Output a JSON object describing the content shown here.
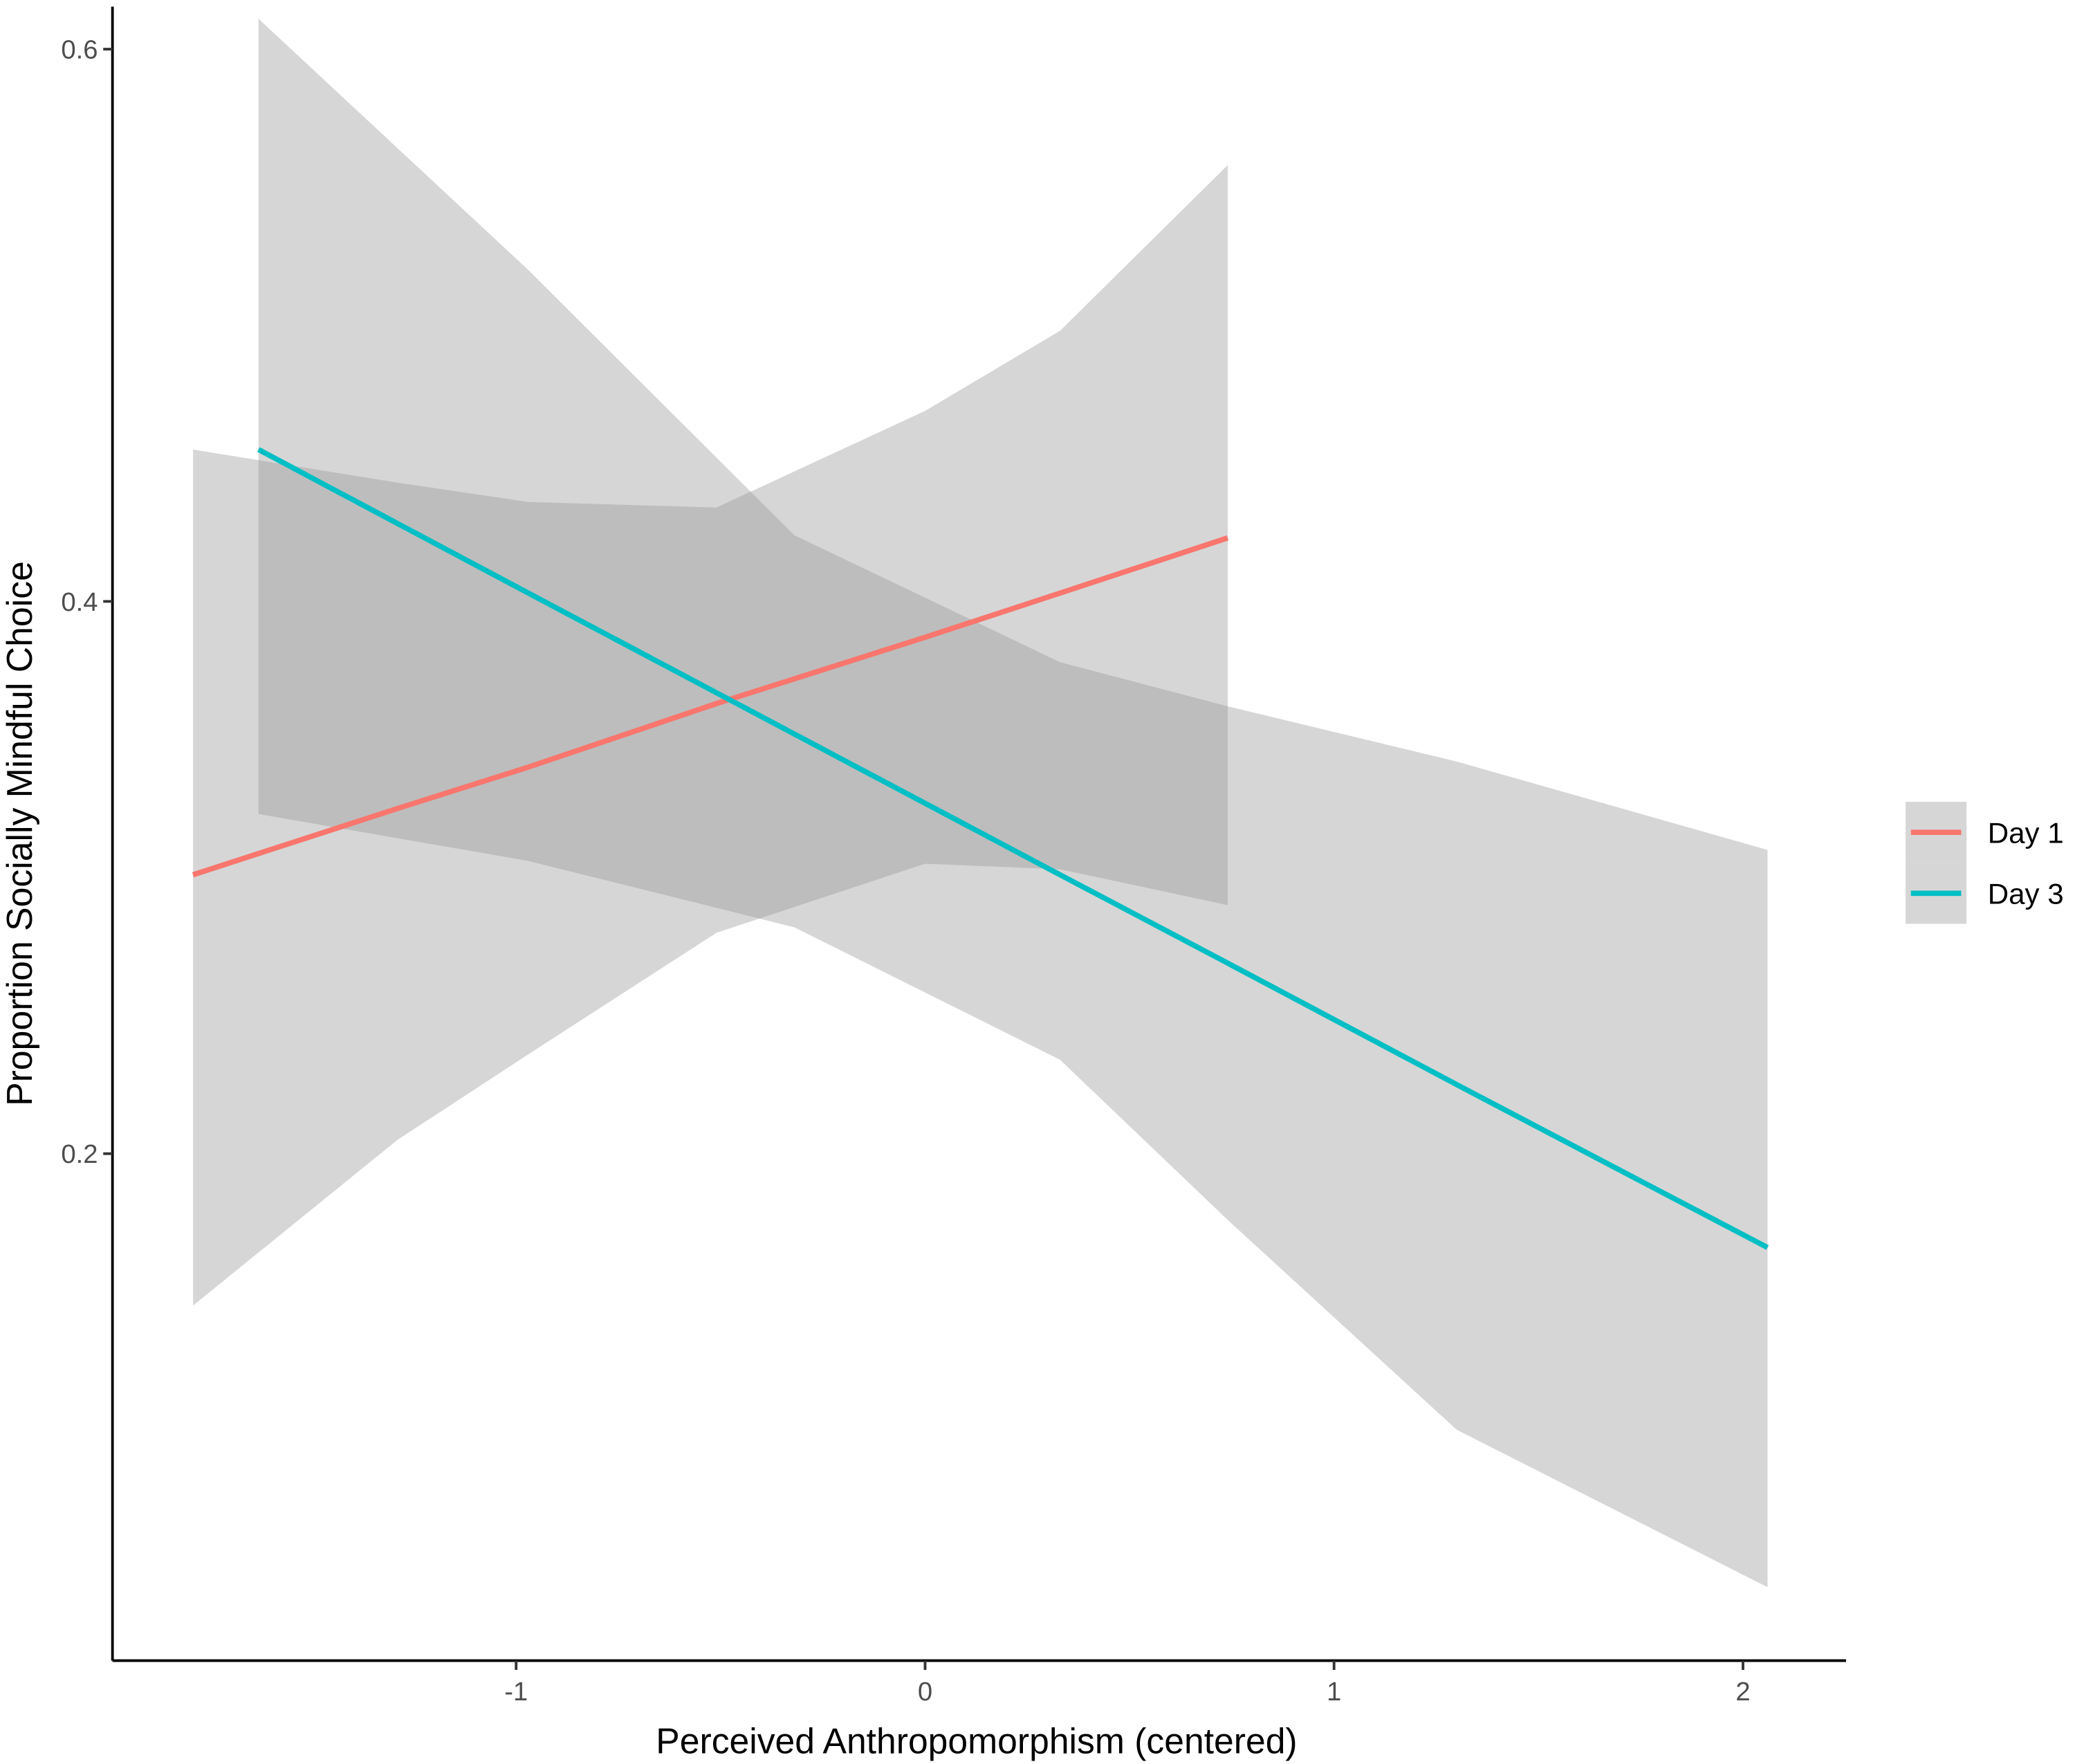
{
  "chart_data": {
    "type": "line",
    "x_label": "Perceived Anthropomorphism (centered)",
    "y_label": "Proportion Socially Mindful Choice",
    "xlim": [
      -1.987,
      2.252
    ],
    "ylim": [
      0.0164,
      0.6154
    ],
    "xticks": [
      -1,
      0,
      1,
      2
    ],
    "yticks": [
      0.2,
      0.4,
      0.6
    ],
    "grid": false,
    "legend_position": "right",
    "band_color": "#999999",
    "series": [
      {
        "name": "Day 1",
        "color": "#F8766D",
        "x": [
          -1.79,
          -1.29,
          -0.97,
          -0.51,
          0,
          0.33,
          0.74
        ],
        "values": [
          0.301,
          0.325,
          0.34,
          0.363,
          0.387,
          0.403,
          0.423
        ],
        "lower": [
          0.145,
          0.205,
          0.236,
          0.28,
          0.305,
          0.303,
          0.29
        ],
        "upper": [
          0.455,
          0.443,
          0.436,
          0.434,
          0.469,
          0.498,
          0.558
        ]
      },
      {
        "name": "Day 3",
        "color": "#00BFC4",
        "x": [
          -1.63,
          -0.97,
          -0.32,
          0.33,
          0.74,
          1.3,
          2.06
        ],
        "values": [
          0.455,
          0.403,
          0.352,
          0.301,
          0.269,
          0.225,
          0.166
        ],
        "lower": [
          0.323,
          0.306,
          0.282,
          0.234,
          0.176,
          0.1,
          0.043
        ],
        "upper": [
          0.611,
          0.52,
          0.424,
          0.378,
          0.362,
          0.342,
          0.31
        ]
      }
    ]
  }
}
